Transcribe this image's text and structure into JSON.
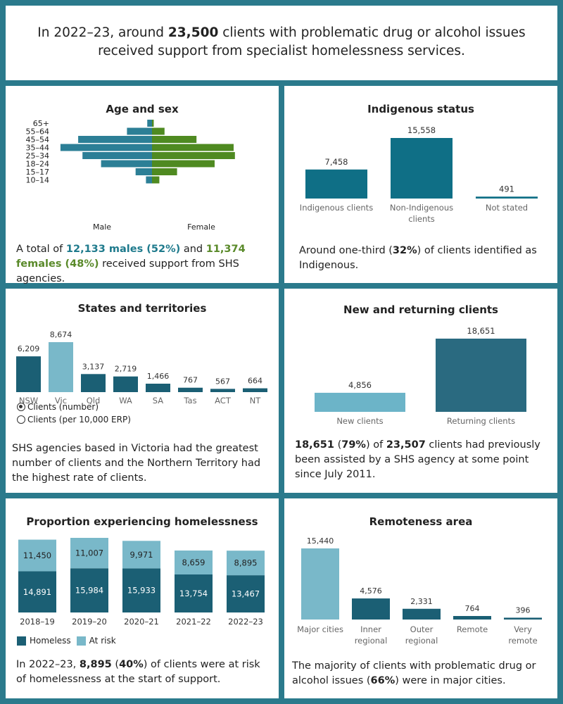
{
  "header": {
    "pre": "In 2022–23, around ",
    "highlight": "23,500",
    "post": " clients with problematic drug or alcohol issues received support from specialist homelessness services."
  },
  "colors": {
    "frame": "#2b7a8c",
    "male": "#2c7f96",
    "female": "#4f8a21",
    "dark_teal": "#1b5f74",
    "light_teal": "#79b8c9",
    "indigenous": "#0f6f86",
    "returning": "#2a6a80",
    "new": "#6cb4c8"
  },
  "age_sex": {
    "title": "Age and sex",
    "male_label": "Male",
    "female_label": "Female",
    "text_a": "A total of ",
    "males": "12,133 males (52%)",
    "text_b": " and ",
    "females": "11,374 females (48%)",
    "text_c": " received support from SHS agencies."
  },
  "indigenous": {
    "title": "Indigenous status",
    "text_a": "Around one-third  (",
    "pct": "32%",
    "text_b": ") of clients identified as Indigenous."
  },
  "states": {
    "title": "States and territories",
    "radio_number": "Clients (number)",
    "radio_rate": "Clients (per 10,000 ERP)",
    "text": "SHS agencies based in Victoria had the greatest number of clients and the Northern Territory had the highest rate of clients."
  },
  "new_returning": {
    "title": "New and returning clients",
    "n1": "18,651",
    "text_a": " (",
    "p1": "79%",
    "text_b": ") of ",
    "n2": "23,507",
    "text_c": " clients had previously been assisted by a SHS agency at some point since July 2011."
  },
  "homelessness": {
    "title": "Proportion experiencing homelessness",
    "legend_homeless": "Homeless",
    "legend_atrisk": "At risk",
    "text_a": "In 2022–23, ",
    "n": "8,895",
    "text_b": " (",
    "p": "40%",
    "text_c": ") of clients were at risk of homelessness at the start of support."
  },
  "remoteness": {
    "title": "Remoteness area",
    "text_a": "The majority of clients with problematic drug or alcohol issues (",
    "p": "66%",
    "text_b": ") were in major cities."
  },
  "chart_data": [
    {
      "id": "age_sex",
      "type": "bar",
      "orientation": "horizontal-pyramid",
      "title": "Age and sex",
      "categories": [
        "65+",
        "55–64",
        "45–54",
        "35–44",
        "25–34",
        "18–24",
        "15–17",
        "10–14"
      ],
      "series": [
        {
          "name": "Male",
          "values": [
            110,
            580,
            1710,
            2120,
            1610,
            1180,
            380,
            140
          ]
        },
        {
          "name": "Female",
          "values": [
            40,
            290,
            1030,
            1890,
            1920,
            1450,
            580,
            170
          ]
        }
      ]
    },
    {
      "id": "indigenous",
      "type": "bar",
      "title": "Indigenous status",
      "categories": [
        "Indigenous clients",
        "Non-Indigenous clients",
        "Not stated"
      ],
      "values": [
        7458,
        15558,
        491
      ],
      "labels": [
        "7,458",
        "15,558",
        "491"
      ]
    },
    {
      "id": "states",
      "type": "bar",
      "title": "States and territories",
      "categories": [
        "NSW",
        "Vic",
        "Qld",
        "WA",
        "SA",
        "Tas",
        "ACT",
        "NT"
      ],
      "values": [
        6209,
        8674,
        3137,
        2719,
        1466,
        767,
        567,
        664
      ],
      "labels": [
        "6,209",
        "8,674",
        "3,137",
        "2,719",
        "1,466",
        "767",
        "567",
        "664"
      ],
      "highlight": "Vic"
    },
    {
      "id": "new_returning",
      "type": "bar",
      "title": "New and returning clients",
      "categories": [
        "New clients",
        "Returning clients"
      ],
      "values": [
        4856,
        18651
      ],
      "labels": [
        "4,856",
        "18,651"
      ]
    },
    {
      "id": "homelessness",
      "type": "bar",
      "stacked": true,
      "title": "Proportion experiencing homelessness",
      "categories": [
        "2018–19",
        "2019–20",
        "2020–21",
        "2021–22",
        "2022–23"
      ],
      "series": [
        {
          "name": "Homeless",
          "values": [
            14891,
            15984,
            15933,
            13754,
            13467
          ],
          "labels": [
            "14,891",
            "15,984",
            "15,933",
            "13,754",
            "13,467"
          ]
        },
        {
          "name": "At risk",
          "values": [
            11450,
            11007,
            9971,
            8659,
            8895
          ],
          "labels": [
            "11,450",
            "11,007",
            "9,971",
            "8,659",
            "8,895"
          ]
        }
      ]
    },
    {
      "id": "remoteness",
      "type": "bar",
      "title": "Remoteness area",
      "categories": [
        "Major cities",
        "Inner regional",
        "Outer regional",
        "Remote",
        "Very remote"
      ],
      "values": [
        15440,
        4576,
        2331,
        764,
        396
      ],
      "labels": [
        "15,440",
        "4,576",
        "2,331",
        "764",
        "396"
      ]
    }
  ]
}
